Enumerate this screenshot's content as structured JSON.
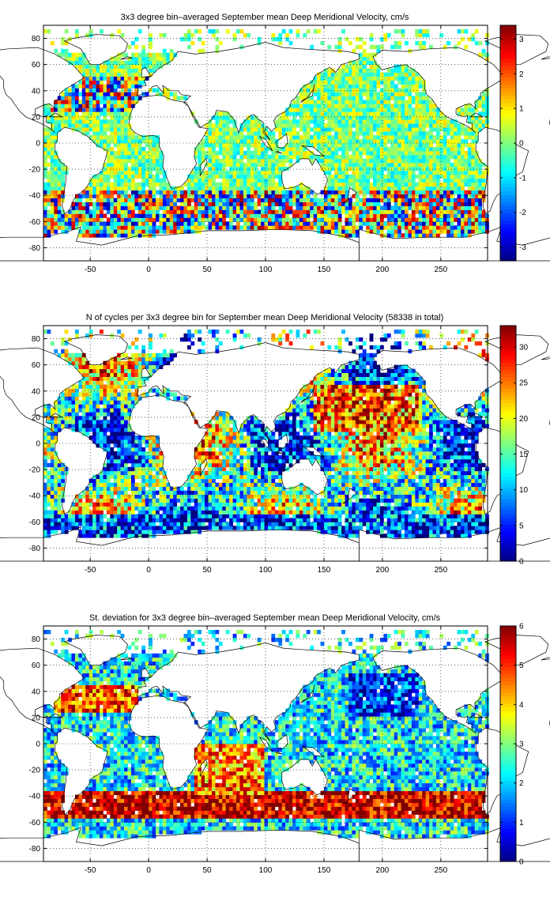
{
  "chart_data": [
    {
      "type": "heatmap",
      "title": "3x3 degree bin–averaged September mean Deep Meridional Velocity, cm/s",
      "field": "velocity",
      "xlim": [
        -90,
        290
      ],
      "ylim": [
        -90,
        90
      ],
      "x_ticks": [
        -50,
        0,
        50,
        100,
        150,
        200,
        250
      ],
      "y_ticks": [
        80,
        60,
        40,
        20,
        0,
        -20,
        -40,
        -60,
        -80
      ],
      "colorbar": {
        "min": -3.4,
        "max": 3.4,
        "ticks": [
          3,
          2,
          1,
          0,
          -1,
          -2,
          -3
        ]
      },
      "grid": true,
      "colormap": "jet",
      "bin_size_deg": 3
    },
    {
      "type": "heatmap",
      "title": "N of cycles per 3x3 degree bin for September mean Deep Meridional Velocity (58338 in total)",
      "field": "count",
      "xlim": [
        -90,
        290
      ],
      "ylim": [
        -90,
        90
      ],
      "x_ticks": [
        -50,
        0,
        50,
        100,
        150,
        200,
        250
      ],
      "y_ticks": [
        80,
        60,
        40,
        20,
        0,
        -20,
        -40,
        -60,
        -80
      ],
      "colorbar": {
        "min": 0,
        "max": 33,
        "ticks": [
          30,
          25,
          20,
          15,
          10,
          5,
          0
        ]
      },
      "grid": true,
      "colormap": "jet",
      "bin_size_deg": 3
    },
    {
      "type": "heatmap",
      "title": "St. deviation for 3x3 degree bin–averaged September mean Deep Meridional Velocity, cm/s",
      "field": "stdev",
      "xlim": [
        -90,
        290
      ],
      "ylim": [
        -90,
        90
      ],
      "x_ticks": [
        -50,
        0,
        50,
        100,
        150,
        200,
        250
      ],
      "y_ticks": [
        80,
        60,
        40,
        20,
        0,
        -20,
        -40,
        -60,
        -80
      ],
      "colorbar": {
        "min": 0,
        "max": 6,
        "ticks": [
          6,
          5,
          4,
          3,
          2,
          1,
          0
        ]
      },
      "grid": true,
      "colormap": "jet",
      "bin_size_deg": 3
    }
  ]
}
